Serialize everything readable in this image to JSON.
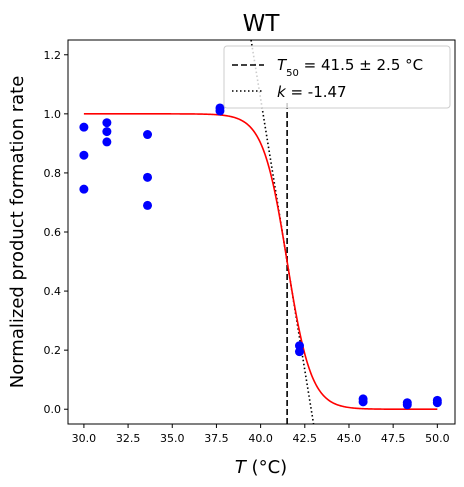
{
  "chart_data": {
    "type": "scatter",
    "title": "WT",
    "xlabel_var": "T",
    "xlabel_unit": " (°C)",
    "ylabel": "Normalized product formation rate",
    "xlim": [
      29.1,
      51.0
    ],
    "ylim": [
      -0.05,
      1.25
    ],
    "xticks": [
      "30.0",
      "32.5",
      "35.0",
      "37.5",
      "40.0",
      "42.5",
      "45.0",
      "47.5",
      "50.0"
    ],
    "yticks": [
      "0.0",
      "0.2",
      "0.4",
      "0.6",
      "0.8",
      "1.0",
      "1.2"
    ],
    "grid": false,
    "legend_position": "top-right",
    "points": {
      "color": "#0000ff",
      "x": [
        30.0,
        30.0,
        30.0,
        31.3,
        31.3,
        31.3,
        33.6,
        33.6,
        33.6,
        37.7,
        37.7,
        42.2,
        42.2,
        45.8,
        45.8,
        48.3,
        48.3,
        50.0,
        50.0
      ],
      "y": [
        0.955,
        0.86,
        0.745,
        0.97,
        0.94,
        0.905,
        0.93,
        0.785,
        0.69,
        1.02,
        1.01,
        0.215,
        0.195,
        0.035,
        0.025,
        0.022,
        0.015,
        0.03,
        0.022
      ]
    },
    "fit": {
      "color": "#ff0000",
      "model": "logistic",
      "T50": 41.5,
      "k": -1.47,
      "x_range": [
        30.0,
        50.0
      ]
    },
    "t50_line": {
      "label_var": "T",
      "label_sub": "50",
      "label_rest": " = 41.5 ± 2.5 °C",
      "x": 41.5,
      "y_top": 1.04
    },
    "slope_line": {
      "label_var": "k",
      "label_rest": " = -1.47"
    }
  }
}
